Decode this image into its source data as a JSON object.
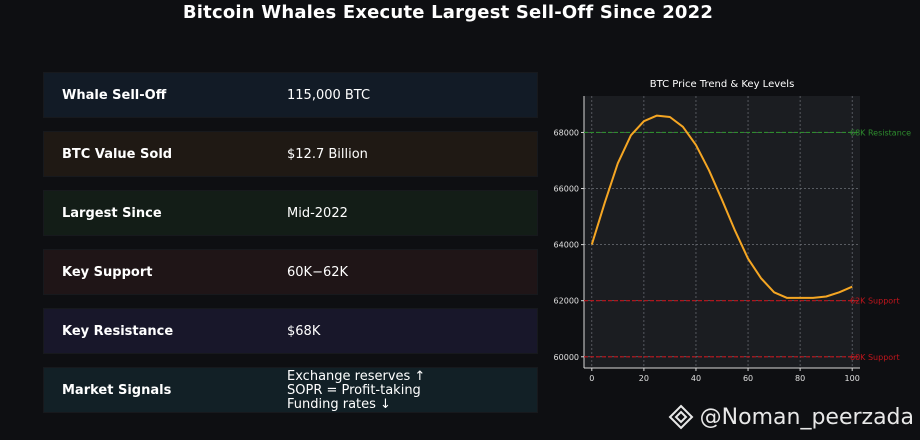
{
  "title": "Bitcoin Whales Execute Largest Sell-Off Since 2022",
  "rows": [
    {
      "label": "Whale Sell-Off",
      "value": [
        "115,000 BTC"
      ],
      "bg": "#121b26"
    },
    {
      "label": "BTC Value Sold",
      "value": [
        "$12.7 Billion"
      ],
      "bg": "#1f1914"
    },
    {
      "label": "Largest Since",
      "value": [
        "Mid-2022"
      ],
      "bg": "#131d17"
    },
    {
      "label": "Key Support",
      "value": [
        "60K−62K"
      ],
      "bg": "#1f1517"
    },
    {
      "label": "Key Resistance",
      "value": [
        "$68K"
      ],
      "bg": "#18172a"
    },
    {
      "label": "Market Signals",
      "value": [
        "Exchange reserves ↑",
        "SOPR = Profit-taking",
        "Funding rates ↓"
      ],
      "bg": "#122026"
    }
  ],
  "chart_data": {
    "type": "line",
    "title": "BTC Price Trend & Key Levels",
    "xlabel": "",
    "ylabel": "",
    "xlim": [
      -3,
      103
    ],
    "ylim": [
      59600,
      69300
    ],
    "xticks": [
      0,
      20,
      40,
      60,
      80,
      100
    ],
    "yticks": [
      60000,
      62000,
      64000,
      66000,
      68000
    ],
    "grid": true,
    "series": [
      {
        "color": "#f5a623",
        "x": [
          0,
          5,
          10,
          15,
          20,
          25,
          30,
          35,
          40,
          45,
          50,
          55,
          60,
          65,
          70,
          75,
          80,
          85,
          90,
          95,
          100
        ],
        "y": [
          64000,
          65500,
          66900,
          67900,
          68400,
          68600,
          68550,
          68200,
          67550,
          66650,
          65600,
          64500,
          63500,
          62800,
          62300,
          62100,
          62100,
          62100,
          62150,
          62300,
          62500
        ]
      }
    ],
    "hlines": [
      {
        "y": 68000,
        "label": "68K Resistance",
        "color": "#2e8b2e"
      },
      {
        "y": 62000,
        "label": "62K Support",
        "color": "#c0151c"
      },
      {
        "y": 60000,
        "label": "60K Support",
        "color": "#c0151c"
      }
    ]
  },
  "watermark": "@Noman_peerzada"
}
